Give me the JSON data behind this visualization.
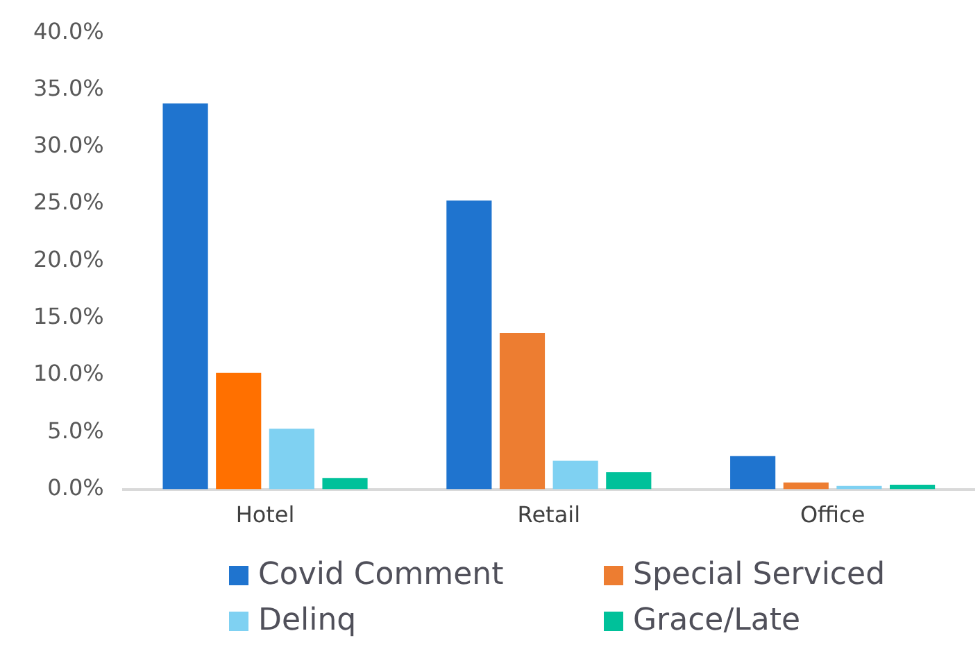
{
  "chart_data": {
    "type": "bar",
    "categories": [
      "Hotel",
      "Retail",
      "Office"
    ],
    "series": [
      {
        "name": "Covid Comment",
        "color": "#1f74cf",
        "values": [
          33.8,
          25.3,
          2.9
        ]
      },
      {
        "name": "Special Serviced",
        "color": "#ed7d31",
        "colors": [
          "#ff7000",
          "#ed7d31",
          "#ed7d31"
        ],
        "values": [
          10.2,
          13.7,
          0.6
        ]
      },
      {
        "name": "Delinq",
        "color": "#7fd1f2",
        "values": [
          5.3,
          2.5,
          0.3
        ]
      },
      {
        "name": "Grace/Late",
        "color": "#00c19a",
        "values": [
          1.0,
          1.5,
          0.4
        ]
      }
    ],
    "ylim": [
      0,
      40
    ],
    "yticks": [
      {
        "value": 0,
        "label": "0.0%"
      },
      {
        "value": 5,
        "label": "5.0%"
      },
      {
        "value": 10,
        "label": "10.0%"
      },
      {
        "value": 15,
        "label": "15.0%"
      },
      {
        "value": 20,
        "label": "20.0%"
      },
      {
        "value": 25,
        "label": "25.0%"
      },
      {
        "value": 30,
        "label": "30.0%"
      },
      {
        "value": 35,
        "label": "35.0%"
      },
      {
        "value": 40,
        "label": "40.0%"
      }
    ],
    "grid": false,
    "legend": "bottom"
  }
}
